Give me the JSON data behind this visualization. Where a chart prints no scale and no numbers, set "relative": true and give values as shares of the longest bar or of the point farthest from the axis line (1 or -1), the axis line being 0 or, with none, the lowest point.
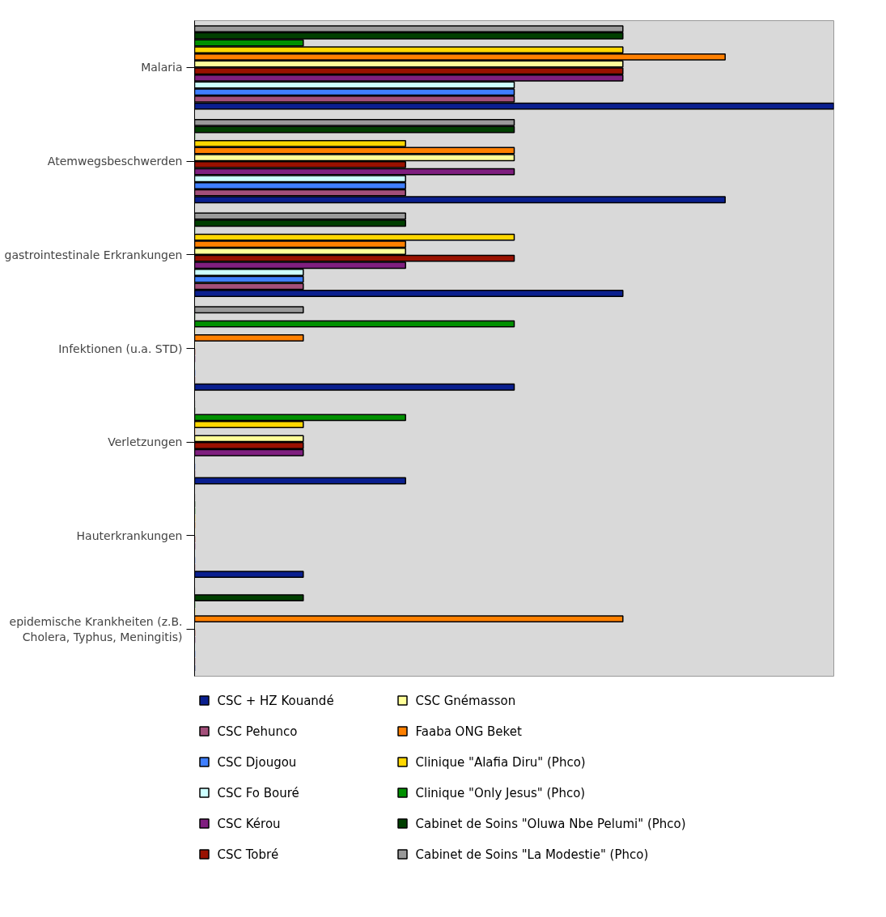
{
  "chart_data": {
    "type": "bar",
    "orientation": "horizontal",
    "relative": true,
    "legend": "bottom",
    "grid": false,
    "categories": [
      "Malaria",
      "Atemwegsbeschwerden",
      "gastrointestinale Erkrankungen",
      "Infektionen (u.a. STD)",
      "Verletzungen",
      "Hauterkrankungen",
      "epidemische Krankheiten (z.B. Cholera, Typhus, Meningitis)"
    ],
    "series": [
      {
        "name": "CSC + HZ Kouandé",
        "color": "#0a1f8f",
        "values": [
          1,
          0.83,
          0.67,
          0.5,
          0.33,
          0.17,
          0
        ]
      },
      {
        "name": "CSC Pehunco",
        "color": "#a34f7a",
        "values": [
          0.5,
          0.33,
          0.17,
          0,
          0,
          0,
          0
        ]
      },
      {
        "name": "CSC Djougou",
        "color": "#3f7fff",
        "values": [
          0.5,
          0.33,
          0.17,
          0,
          0,
          0,
          0
        ]
      },
      {
        "name": "CSC Fo Bouré",
        "color": "#ccffff",
        "values": [
          0.5,
          0.33,
          0.17,
          0,
          0,
          0,
          0
        ]
      },
      {
        "name": "CSC Kérou",
        "color": "#7f1f7f",
        "values": [
          0.67,
          0.5,
          0.33,
          0,
          0.17,
          0,
          0
        ]
      },
      {
        "name": "CSC Tobré",
        "color": "#991100",
        "values": [
          0.67,
          0.33,
          0.5,
          0,
          0.17,
          0,
          0
        ]
      },
      {
        "name": "CSC Gnémasson",
        "color": "#ffff99",
        "values": [
          0.67,
          0.5,
          0.33,
          0,
          0.17,
          0,
          0
        ]
      },
      {
        "name": "Faaba ONG Beket",
        "color": "#ff8000",
        "values": [
          0.83,
          0.5,
          0.33,
          0.17,
          0,
          0,
          0.67
        ]
      },
      {
        "name": "Clinique \"Alafia Diru\" (Phco)",
        "color": "#ffd700",
        "values": [
          0.67,
          0.33,
          0.5,
          0,
          0.17,
          0,
          0
        ]
      },
      {
        "name": "Clinique \"Only Jesus\" (Phco)",
        "color": "#009000",
        "values": [
          0.17,
          0,
          0,
          0.5,
          0.33,
          0,
          0
        ]
      },
      {
        "name": "Cabinet de Soins \"Oluwa Nbe Pelumi\" (Phco)",
        "color": "#003f00",
        "values": [
          0.67,
          0.5,
          0.33,
          0,
          0,
          0,
          0.17
        ]
      },
      {
        "name": "Cabinet de Soins \"La Modestie\" (Phco)",
        "color": "#999999",
        "values": [
          0.67,
          0.5,
          0.33,
          0.17,
          0,
          0,
          0
        ]
      }
    ]
  }
}
